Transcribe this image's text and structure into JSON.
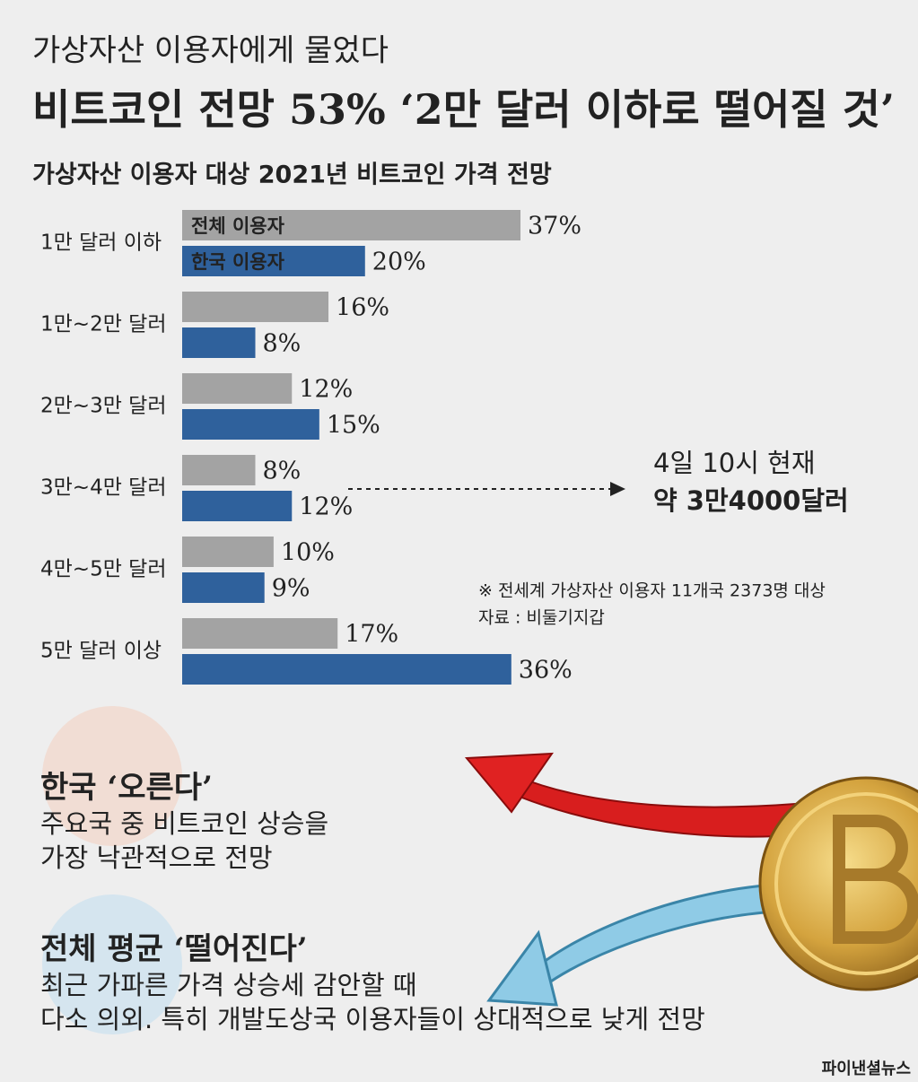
{
  "header": {
    "kicker": "가상자산 이용자에게 물었다",
    "title": "비트코인 전망 53% ‘2만 달러 이하로 떨어질 것’"
  },
  "chart_data": {
    "type": "bar",
    "orientation": "horizontal",
    "title": "가상자산 이용자 대상 2021년 비트코인 가격 전망",
    "categories": [
      "1만 달러 이하",
      "1만~2만 달러",
      "2만~3만 달러",
      "3만~4만 달러",
      "4만~5만 달러",
      "5만 달러 이상"
    ],
    "series": [
      {
        "name": "전체 이용자",
        "color": "#a3a3a3",
        "values": [
          37,
          16,
          12,
          8,
          10,
          17
        ],
        "value_labels": [
          "37%",
          "16%",
          "12%",
          "8%",
          "10%",
          "17%"
        ]
      },
      {
        "name": "한국 이용자",
        "color": "#2f619c",
        "values": [
          20,
          8,
          15,
          12,
          9,
          36
        ],
        "value_labels": [
          "20%",
          "8%",
          "15%",
          "12%",
          "9%",
          "36%"
        ]
      }
    ],
    "annotation": [
      "4일 10시 현재",
      "약 3만4000달러"
    ],
    "note": "※ 전세계 가상자산 이용자 11개국 2373명 대상",
    "source": "자료 : 비둘기지갑"
  },
  "sections": [
    {
      "heading": "한국 ‘오른다’",
      "lines": [
        "주요국 중 비트코인 상승을",
        "가장 낙관적으로  전망"
      ]
    },
    {
      "heading": "전체 평균 ‘떨어진다’",
      "lines": [
        "최근 가파른 가격 상승세 감안할 때",
        "다소 의외. 특히 개발도상국 이용자들이 상대적으로 낮게 전망"
      ]
    }
  ],
  "credit": "파이낸셜뉴스"
}
